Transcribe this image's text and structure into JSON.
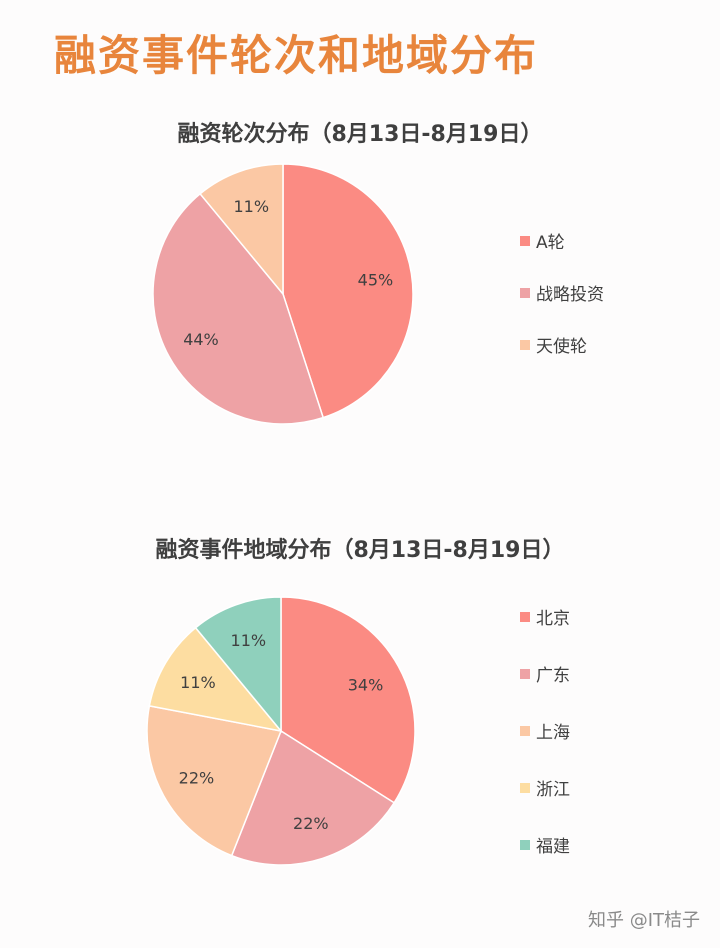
{
  "page_title": "融资事件轮次和地域分布",
  "watermark": "知乎 @IT桔子",
  "chart_data": [
    {
      "type": "pie",
      "title": "融资轮次分布（8月13日-8月19日）",
      "categories": [
        "A轮",
        "战略投资",
        "天使轮"
      ],
      "values": [
        45,
        44,
        11
      ],
      "labels": [
        "45%",
        "44%",
        "11%"
      ],
      "colors": [
        "#fb8b83",
        "#eea2a5",
        "#fbc8a4"
      ],
      "legend_position": "right"
    },
    {
      "type": "pie",
      "title": "融资事件地域分布（8月13日-8月19日）",
      "categories": [
        "北京",
        "广东",
        "上海",
        "浙江",
        "福建"
      ],
      "values": [
        34,
        22,
        22,
        11,
        11
      ],
      "labels": [
        "34%",
        "22%",
        "22%",
        "11%",
        "11%"
      ],
      "colors": [
        "#fb8b83",
        "#eea2a5",
        "#fbc8a4",
        "#fddda1",
        "#8fd0bc"
      ],
      "legend_position": "right"
    }
  ]
}
